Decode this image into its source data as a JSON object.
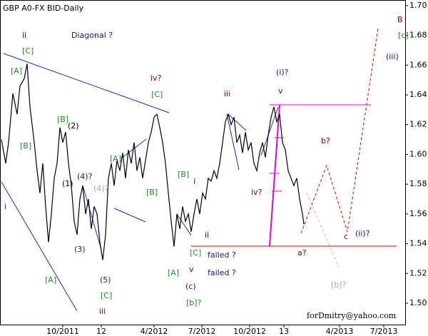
{
  "chart_data": {
    "type": "line",
    "title": "GBP A0-FX BID-Daily",
    "xlim": [
      0,
      568
    ],
    "ylim": [
      1.4856,
      1.7038
    ],
    "xticks": [
      {
        "value": 88,
        "label": "10/2011"
      },
      {
        "value": 142,
        "label": "12"
      },
      {
        "value": 216,
        "label": "4/2012"
      },
      {
        "value": 283,
        "label": "7/2012"
      },
      {
        "value": 350,
        "label": "10/2012"
      },
      {
        "value": 398,
        "label": "13"
      },
      {
        "value": 476,
        "label": "4/2013"
      },
      {
        "value": 538,
        "label": "7/2013"
      }
    ],
    "yticks": [
      {
        "value": 1.5,
        "label": "1.50"
      },
      {
        "value": 1.52,
        "label": "1.52"
      },
      {
        "value": 1.54,
        "label": "1.54"
      },
      {
        "value": 1.56,
        "label": "1.56"
      },
      {
        "value": 1.58,
        "label": "1.58"
      },
      {
        "value": 1.6,
        "label": "1.60"
      },
      {
        "value": 1.62,
        "label": "1.62"
      },
      {
        "value": 1.64,
        "label": "1.64"
      },
      {
        "value": 1.66,
        "label": "1.66"
      },
      {
        "value": 1.68,
        "label": "1.68"
      },
      {
        "value": 1.7,
        "label": "1.70"
      }
    ],
    "series": [
      {
        "name": "GBP A0-FX BID",
        "color": "#000000",
        "x": [
          2,
          8,
          12,
          18,
          24,
          28,
          34,
          38,
          42,
          48,
          52,
          56,
          60,
          64,
          68,
          72,
          76,
          80,
          84,
          88,
          92,
          96,
          100,
          104,
          108,
          112,
          116,
          120,
          124,
          128,
          132,
          136,
          140,
          144,
          148,
          152,
          156,
          160,
          164,
          168,
          172,
          176,
          180,
          184,
          188,
          192,
          196,
          200,
          204,
          208,
          212,
          216,
          220,
          224,
          228,
          232,
          236,
          240,
          244,
          248,
          252,
          256,
          260,
          264,
          268,
          272,
          276,
          280,
          284,
          288,
          292,
          296,
          300,
          304,
          308,
          312,
          316,
          320,
          324,
          328,
          332,
          336,
          340,
          344,
          348,
          352,
          356,
          360,
          364,
          368,
          372,
          376,
          380,
          384,
          388,
          392,
          396,
          400,
          404,
          408,
          412,
          416,
          420,
          424,
          426
        ],
        "values": [
          1.61,
          1.594,
          1.608,
          1.641,
          1.627,
          1.646,
          1.651,
          1.661,
          1.632,
          1.608,
          1.589,
          1.574,
          1.594,
          1.565,
          1.541,
          1.56,
          1.584,
          1.594,
          1.618,
          1.608,
          1.615,
          1.594,
          1.579,
          1.555,
          1.546,
          1.57,
          1.579,
          1.56,
          1.57,
          1.55,
          1.565,
          1.56,
          1.541,
          1.529,
          1.546,
          1.584,
          1.594,
          1.579,
          1.596,
          1.589,
          1.601,
          1.584,
          1.603,
          1.594,
          1.608,
          1.589,
          1.598,
          1.584,
          1.596,
          1.608,
          1.615,
          1.625,
          1.627,
          1.618,
          1.608,
          1.594,
          1.574,
          1.555,
          1.538,
          1.56,
          1.55,
          1.565,
          1.555,
          1.56,
          1.548,
          1.56,
          1.57,
          1.56,
          1.574,
          1.57,
          1.584,
          1.582,
          1.589,
          1.584,
          1.594,
          1.608,
          1.622,
          1.627,
          1.62,
          1.625,
          1.608,
          1.613,
          1.601,
          1.615,
          1.603,
          1.608,
          1.594,
          1.589,
          1.601,
          1.608,
          1.598,
          1.613,
          1.625,
          1.632,
          1.622,
          1.627,
          1.608,
          1.603,
          1.589,
          1.584,
          1.579,
          1.584,
          1.57,
          1.56,
          1.553
        ]
      }
    ],
    "annotations": [
      {
        "text": "B",
        "color": "#8b0000"
      },
      {
        "text": "[c]",
        "color": "#228b22"
      },
      {
        "text": "(iii)",
        "color": "#191970"
      },
      {
        "text": "ii",
        "color": "#8b0000"
      },
      {
        "text": "Diagonal ?",
        "color": "#191970"
      },
      {
        "text": "[C]",
        "color": "#228b22"
      },
      {
        "text": "[A]",
        "color": "#228b22"
      },
      {
        "text": "iv?",
        "color": "#8b0000"
      },
      {
        "text": "[C]",
        "color": "#228b22"
      },
      {
        "text": "(i)?",
        "color": "#191970"
      },
      {
        "text": "iii",
        "color": "#8b0000"
      },
      {
        "text": "v",
        "color": "#8b0000"
      },
      {
        "text": "[B]",
        "color": "#228b22"
      },
      {
        "text": "(2)",
        "color": "#000000"
      },
      {
        "text": "[B]",
        "color": "#228b22"
      },
      {
        "text": "[A]",
        "color": "#228b22"
      },
      {
        "text": "b?",
        "color": "#8b0000"
      },
      {
        "text": "(4)?",
        "color": "#191970"
      },
      {
        "text": "(4)?",
        "color": "#aaaaaa"
      },
      {
        "text": "(1)",
        "color": "#000000"
      },
      {
        "text": "[B]",
        "color": "#228b22"
      },
      {
        "text": "i",
        "color": "#8b0000"
      },
      {
        "text": "[B]",
        "color": "#228b22"
      },
      {
        "text": "iv?",
        "color": "#8b0000"
      },
      {
        "text": "i",
        "color": "#8b0000"
      },
      {
        "text": "ii",
        "color": "#8b0000"
      },
      {
        "text": "c",
        "color": "#8b0000"
      },
      {
        "text": "(ii)?",
        "color": "#191970"
      },
      {
        "text": "(3)",
        "color": "#191970"
      },
      {
        "text": "[C]",
        "color": "#228b22"
      },
      {
        "text": "failed ?",
        "color": "#191970"
      },
      {
        "text": "a?",
        "color": "#8b0000"
      },
      {
        "text": "(5)",
        "color": "#191970"
      },
      {
        "text": "[A]",
        "color": "#228b22"
      },
      {
        "text": "[A]",
        "color": "#228b22"
      },
      {
        "text": "v",
        "color": "#8b0000"
      },
      {
        "text": "failed ?",
        "color": "#191970"
      },
      {
        "text": "(c)",
        "color": "#191970"
      },
      {
        "text": "[b]?",
        "color": "#aaaaaa"
      },
      {
        "text": "[C]",
        "color": "#228b22"
      },
      {
        "text": "[b]?",
        "color": "#228b22"
      },
      {
        "text": "iii",
        "color": "#8b0000"
      },
      {
        "text": "forDmitry@yahoo.com",
        "color": "#000000"
      }
    ]
  }
}
